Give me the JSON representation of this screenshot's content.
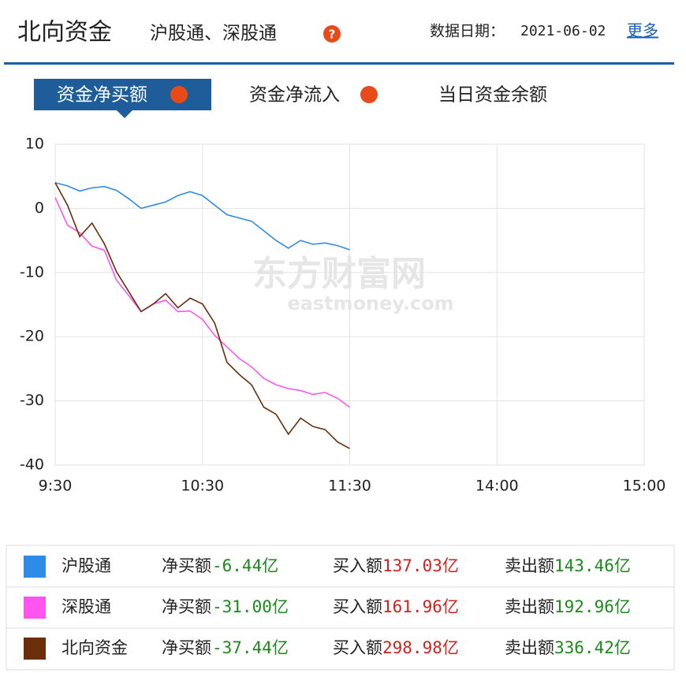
{
  "header": {
    "title": "北向资金",
    "subtitle": "沪股通、深股通",
    "date_label": "数据日期：",
    "date": "2021-06-02",
    "more": "更多"
  },
  "tabs": [
    "资金净买额",
    "资金净流入",
    "当日资金余额"
  ],
  "watermark": {
    "cn": "东方财富网",
    "en": "eastmoney.com"
  },
  "chart_data": {
    "type": "line",
    "x": [
      0,
      5,
      10,
      15,
      20,
      25,
      30,
      35,
      40,
      45,
      50,
      55,
      60,
      65,
      70,
      75,
      80,
      85,
      90,
      95,
      100,
      105,
      110,
      115,
      120
    ],
    "xlim": [
      0,
      240
    ],
    "xticks": [
      {
        "value": 0,
        "label": "9:30"
      },
      {
        "value": 60,
        "label": "10:30"
      },
      {
        "value": 120,
        "label": "11:30"
      },
      {
        "value": 180,
        "label": "14:00"
      },
      {
        "value": 240,
        "label": "15:00"
      }
    ],
    "ylim": [
      -40,
      10
    ],
    "yticks": [
      10,
      0,
      -10,
      -20,
      -30,
      -40
    ],
    "grid": true,
    "series": [
      {
        "name": "沪股通",
        "color": "#2e8ce6",
        "values": [
          4.0,
          3.5,
          2.7,
          3.2,
          3.4,
          2.8,
          1.5,
          0.0,
          0.5,
          1.0,
          2.0,
          2.6,
          2.0,
          0.5,
          -1.0,
          -1.5,
          -2.0,
          -3.5,
          -5.0,
          -6.2,
          -5.0,
          -5.6,
          -5.4,
          -5.8,
          -6.44
        ]
      },
      {
        "name": "深股通",
        "color": "#ff55ee",
        "values": [
          1.7,
          -2.6,
          -3.8,
          -5.9,
          -6.5,
          -11.2,
          -13.6,
          -16.1,
          -14.9,
          -14.3,
          -16.1,
          -16.0,
          -17.3,
          -19.8,
          -21.6,
          -23.4,
          -24.7,
          -26.5,
          -27.5,
          -28.1,
          -28.4,
          -29.0,
          -28.7,
          -29.6,
          -31.0
        ]
      },
      {
        "name": "北向资金",
        "color": "#6b2e0a",
        "values": [
          4.0,
          0.5,
          -4.4,
          -2.3,
          -5.5,
          -9.9,
          -13.0,
          -16.1,
          -14.9,
          -13.3,
          -15.5,
          -14.0,
          -14.9,
          -17.9,
          -24.0,
          -25.9,
          -27.5,
          -31.0,
          -32.1,
          -35.2,
          -32.7,
          -34.0,
          -34.5,
          -36.4,
          -37.44
        ]
      }
    ]
  },
  "summary": [
    {
      "net_label": "净买额",
      "net": "-6.44亿",
      "buy_label": "买入额",
      "buy": "137.03亿",
      "sell_label": "卖出额",
      "sell": "143.46亿"
    },
    {
      "net_label": "净买额",
      "net": "-31.00亿",
      "buy_label": "买入额",
      "buy": "161.96亿",
      "sell_label": "卖出额",
      "sell": "192.96亿"
    },
    {
      "net_label": "净买额",
      "net": "-37.44亿",
      "buy_label": "买入额",
      "buy": "298.98亿",
      "sell_label": "卖出额",
      "sell": "336.42亿"
    }
  ]
}
